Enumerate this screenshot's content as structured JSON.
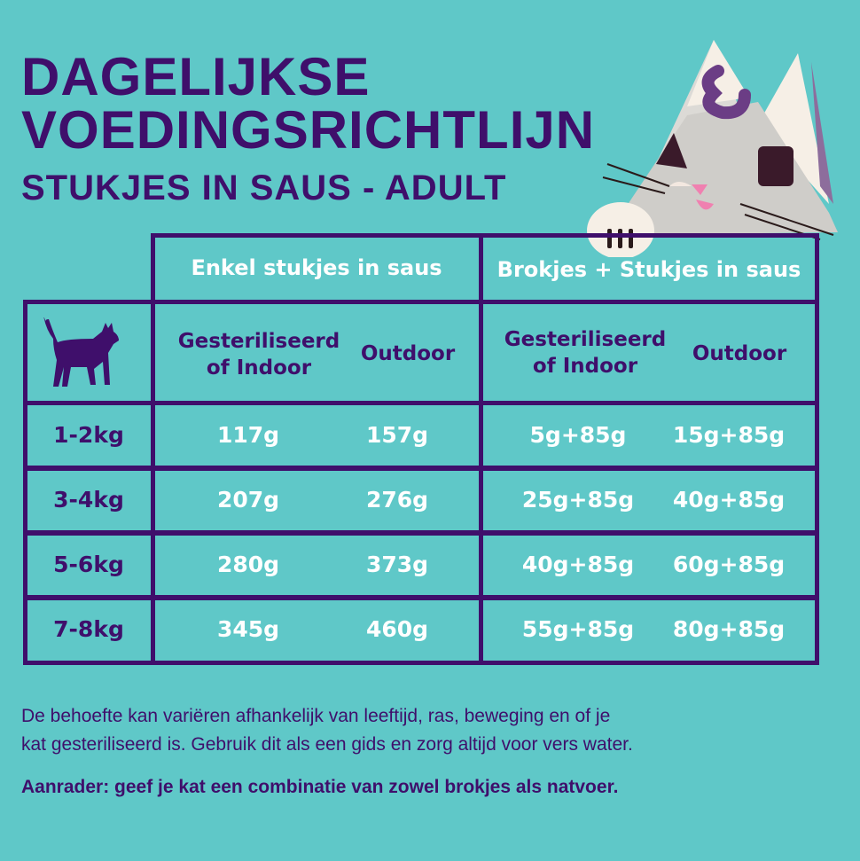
{
  "title": {
    "line1": "DAGELIJKSE",
    "line2": "VOEDINGSRICHTLIJN",
    "subtitle": "STUKJES IN SAUS - ADULT"
  },
  "colors": {
    "background": "#5fc8c8",
    "purple": "#3f0f6b",
    "white": "#ffffff"
  },
  "table": {
    "groups": [
      "Enkel stukjes in saus",
      "Brokjes + Stukjes in saus"
    ],
    "subheaders": [
      {
        "line1": "Gesteriliseerd",
        "line2": "of Indoor"
      },
      {
        "line1": "Outdoor",
        "line2": ""
      },
      {
        "line1": "Gesteriliseerd",
        "line2": "of Indoor"
      },
      {
        "line1": "Outdoor",
        "line2": ""
      }
    ],
    "corner_icon": "cat-silhouette-icon",
    "rows": [
      {
        "weight": "1-2kg",
        "values": [
          "117g",
          "157g",
          "5g+85g",
          "15g+85g"
        ]
      },
      {
        "weight": "3-4kg",
        "values": [
          "207g",
          "276g",
          "25g+85g",
          "40g+85g"
        ]
      },
      {
        "weight": "5-6kg",
        "values": [
          "280g",
          "373g",
          "40g+85g",
          "60g+85g"
        ]
      },
      {
        "weight": "7-8kg",
        "values": [
          "345g",
          "460g",
          "55g+85g",
          "80g+85g"
        ]
      }
    ]
  },
  "footer": {
    "line1": "De behoefte kan variëren afhankelijk van leeftijd, ras, beweging en of je",
    "line2": "kat gesteriliseerd is. Gebruik dit als een gids en zorg altijd voor vers water.",
    "tip": "Aanrader: geef je kat een combinatie van zowel brokjes als natvoer."
  },
  "mascot": {
    "icon": "cat-mascot-illustration",
    "logo_letter": "E"
  }
}
